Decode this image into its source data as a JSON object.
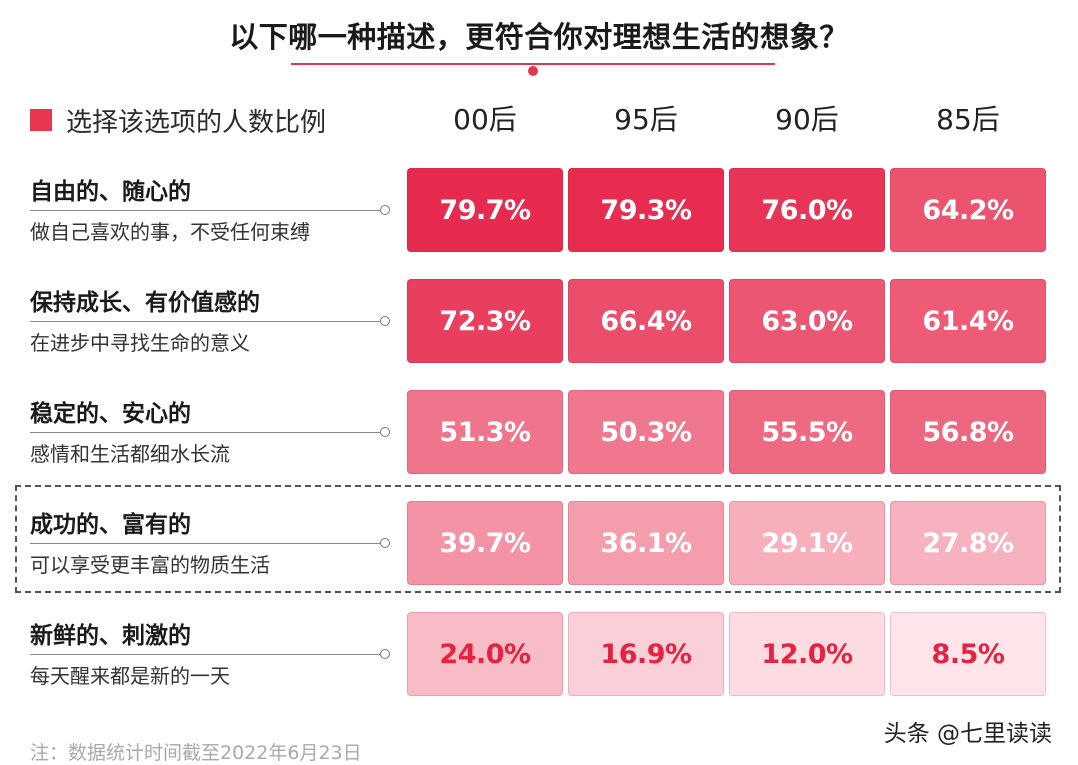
{
  "title": "以下哪一种描述，更符合你对理想生活的想象？",
  "legend_label": "选择该选项的人数比例",
  "accent_color": "#e8364f",
  "footnote": "注：数据统计时间截至2022年6月23日",
  "watermark": "头条 @七里读读",
  "chart_data": {
    "type": "heatmap",
    "title": "以下哪一种描述，更符合你对理想生活的想象？",
    "columns": [
      "00后",
      "95后",
      "90后",
      "85后"
    ],
    "rows": [
      {
        "title": "自由的、随心的",
        "subtitle": "做自己喜欢的事，不受任何束缚",
        "values": [
          79.7,
          79.3,
          76.0,
          64.2
        ],
        "labels": [
          "79.7%",
          "79.3%",
          "76.0%",
          "64.2%"
        ]
      },
      {
        "title": "保持成长、有价值感的",
        "subtitle": "在进步中寻找生命的意义",
        "values": [
          72.3,
          66.4,
          63.0,
          61.4
        ],
        "labels": [
          "72.3%",
          "66.4%",
          "63.0%",
          "61.4%"
        ]
      },
      {
        "title": "稳定的、安心的",
        "subtitle": "感情和生活都细水长流",
        "values": [
          51.3,
          50.3,
          55.5,
          56.8
        ],
        "labels": [
          "51.3%",
          "50.3%",
          "55.5%",
          "56.8%"
        ]
      },
      {
        "title": "成功的、富有的",
        "subtitle": "可以享受更丰富的物质生活",
        "values": [
          39.7,
          36.1,
          29.1,
          27.8
        ],
        "labels": [
          "39.7%",
          "36.1%",
          "29.1%",
          "27.8%"
        ]
      },
      {
        "title": "新鲜的、刺激的",
        "subtitle": "每天醒来都是新的一天",
        "values": [
          24.0,
          16.9,
          12.0,
          8.5
        ],
        "labels": [
          "24.0%",
          "16.9%",
          "12.0%",
          "8.5%"
        ]
      }
    ],
    "highlighted_row": 3,
    "value_unit": "%"
  }
}
